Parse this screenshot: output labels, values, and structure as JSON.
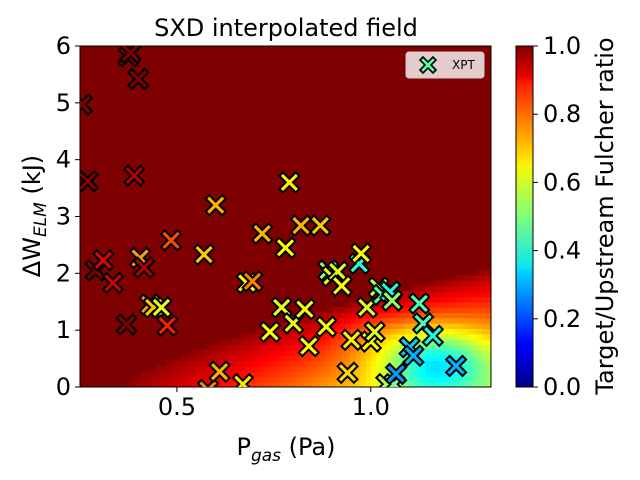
{
  "chart_data": {
    "type": "heatmap",
    "title": "SXD interpolated field",
    "xlabel": {
      "main": "P",
      "sub": "gas",
      "rest": " (Pa)"
    },
    "ylabel": {
      "main": "ΔW",
      "sub": "ELM",
      "rest": " (kJ)"
    },
    "xlim": [
      0.25,
      1.31
    ],
    "ylim": [
      0,
      6
    ],
    "xticks": [
      0.5,
      1.0
    ],
    "xtick_labels": [
      "0.5",
      "1.0"
    ],
    "yticks": [
      0,
      1,
      2,
      3,
      4,
      5,
      6
    ],
    "ytick_labels": [
      "0",
      "1",
      "2",
      "3",
      "4",
      "5",
      "6"
    ],
    "colormap": "jet",
    "colorbar": {
      "label": "Target/Upstream Fulcher ratio",
      "range": [
        0,
        1
      ],
      "ticks": [
        0.0,
        0.2,
        0.4,
        0.6,
        0.8,
        1.0
      ],
      "tick_labels": [
        "0.0",
        "0.2",
        "0.4",
        "0.6",
        "0.8",
        "1.0"
      ]
    },
    "legend": {
      "position": "top-right",
      "entries": [
        {
          "label": "XPT",
          "marker": "X",
          "color": "#55ffa0"
        }
      ]
    },
    "scatter": {
      "name": "XPT",
      "marker": "X",
      "points": [
        [
          0.255,
          4.97,
          1.0
        ],
        [
          0.27,
          3.62,
          1.0
        ],
        [
          0.29,
          2.05,
          1.0
        ],
        [
          0.31,
          2.23,
          0.9
        ],
        [
          0.335,
          1.83,
          0.92
        ],
        [
          0.37,
          1.1,
          1.0
        ],
        [
          0.375,
          5.82,
          1.0
        ],
        [
          0.38,
          5.88,
          1.0
        ],
        [
          0.39,
          3.72,
          0.95
        ],
        [
          0.4,
          5.42,
          1.0
        ],
        [
          0.405,
          2.27,
          0.72
        ],
        [
          0.415,
          2.1,
          0.95
        ],
        [
          0.43,
          1.45,
          0.72
        ],
        [
          0.44,
          1.4,
          0.68
        ],
        [
          0.46,
          1.4,
          0.6
        ],
        [
          0.475,
          1.08,
          0.85
        ],
        [
          0.485,
          2.58,
          0.8
        ],
        [
          0.57,
          2.33,
          0.68
        ],
        [
          0.58,
          -0.05,
          0.75
        ],
        [
          0.6,
          3.2,
          0.7
        ],
        [
          0.61,
          0.27,
          0.7
        ],
        [
          0.67,
          0.05,
          0.65
        ],
        [
          0.68,
          1.83,
          0.62
        ],
        [
          0.695,
          1.86,
          0.75
        ],
        [
          0.72,
          2.7,
          0.7
        ],
        [
          0.74,
          0.97,
          0.62
        ],
        [
          0.77,
          1.4,
          0.6
        ],
        [
          0.78,
          2.45,
          0.62
        ],
        [
          0.79,
          3.6,
          0.64
        ],
        [
          0.8,
          1.12,
          0.6
        ],
        [
          0.82,
          2.84,
          0.7
        ],
        [
          0.83,
          1.37,
          0.62
        ],
        [
          0.84,
          0.72,
          0.62
        ],
        [
          0.87,
          2.84,
          0.68
        ],
        [
          0.885,
          1.06,
          0.62
        ],
        [
          0.89,
          2.05,
          0.5
        ],
        [
          0.9,
          1.95,
          0.6
        ],
        [
          0.915,
          2.03,
          0.6
        ],
        [
          0.925,
          1.78,
          0.62
        ],
        [
          0.94,
          0.25,
          0.66
        ],
        [
          0.95,
          0.83,
          0.64
        ],
        [
          0.97,
          2.17,
          0.42
        ],
        [
          0.975,
          2.35,
          0.62
        ],
        [
          0.99,
          1.4,
          0.6
        ],
        [
          1.0,
          0.8,
          0.62
        ],
        [
          1.01,
          0.97,
          0.6
        ],
        [
          1.02,
          1.75,
          0.58
        ],
        [
          1.03,
          1.62,
          0.45
        ],
        [
          1.04,
          0.05,
          0.55
        ],
        [
          1.05,
          1.68,
          0.4
        ],
        [
          1.055,
          1.52,
          0.52
        ],
        [
          1.06,
          0.05,
          0.5
        ],
        [
          1.065,
          0.23,
          0.28
        ],
        [
          1.1,
          0.7,
          0.33
        ],
        [
          1.11,
          0.55,
          0.3
        ],
        [
          1.125,
          1.47,
          0.45
        ],
        [
          1.135,
          1.12,
          0.45
        ],
        [
          1.16,
          0.9,
          0.4
        ],
        [
          1.22,
          0.37,
          0.3
        ]
      ]
    }
  }
}
